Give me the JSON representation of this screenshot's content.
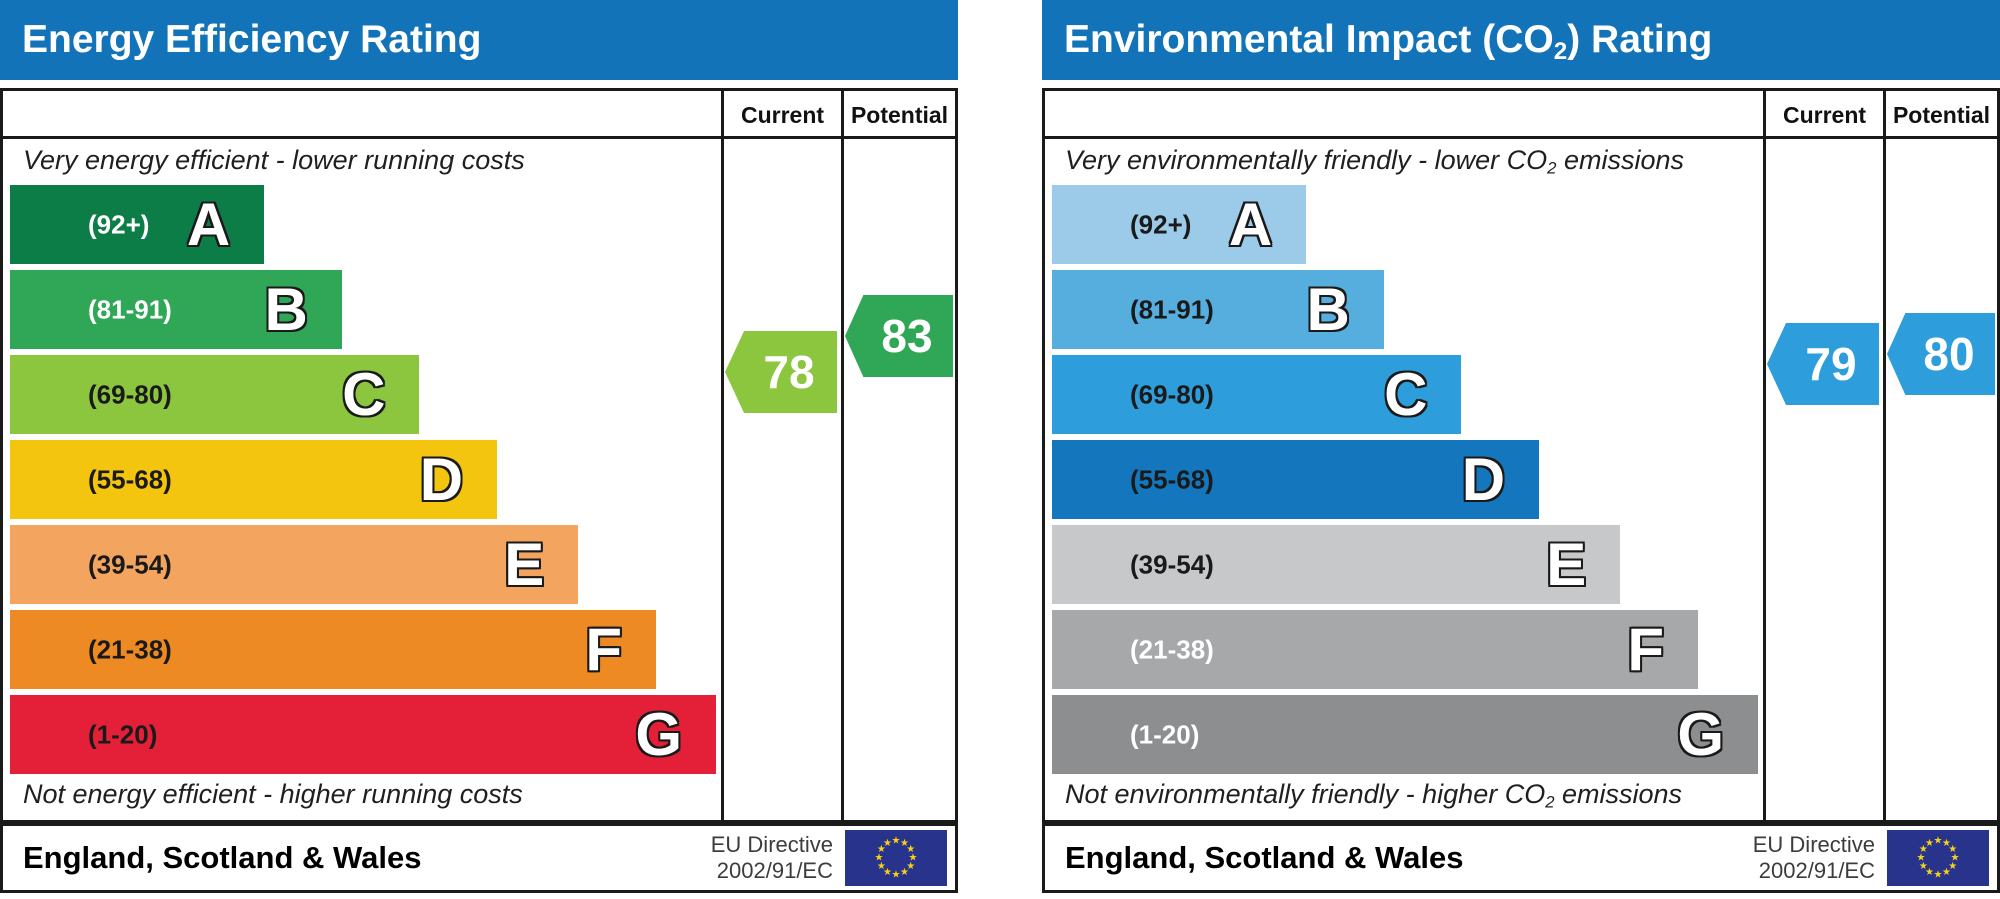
{
  "charts": [
    {
      "title": {
        "prefix": "Energy Efficiency Rating",
        "sub": "",
        "suffix": ""
      },
      "columns": {
        "current": "Current",
        "potential": "Potential"
      },
      "hint_top": {
        "prefix": "Very energy efficient - lower running costs",
        "sub": "",
        "suffix": ""
      },
      "hint_bottom": {
        "prefix": "Not energy efficient - higher running costs",
        "sub": "",
        "suffix": ""
      },
      "bands": [
        {
          "letter": "A",
          "range": "(92+)",
          "color": "#0d7d48",
          "label_color": "#ffffff",
          "width_pct": 36
        },
        {
          "letter": "B",
          "range": "(81-91)",
          "color": "#2fa757",
          "label_color": "#ffffff",
          "width_pct": 47
        },
        {
          "letter": "C",
          "range": "(69-80)",
          "color": "#8cc63f",
          "label_color": "#1a1a1a",
          "width_pct": 58
        },
        {
          "letter": "D",
          "range": "(55-68)",
          "color": "#f4c50f",
          "label_color": "#1a1a1a",
          "width_pct": 69
        },
        {
          "letter": "E",
          "range": "(39-54)",
          "color": "#f3a55f",
          "label_color": "#1a1a1a",
          "width_pct": 80.5
        },
        {
          "letter": "F",
          "range": "(21-38)",
          "color": "#ee8a23",
          "label_color": "#1a1a1a",
          "width_pct": 91.5
        },
        {
          "letter": "G",
          "range": "(1-20)",
          "color": "#e32038",
          "label_color": "#1a1a1a",
          "width_pct": 100
        }
      ],
      "current": {
        "value": "78",
        "color": "#8cc63f"
      },
      "potential": {
        "value": "83",
        "color": "#2fa757"
      },
      "footer": {
        "region": "England, Scotland & Wales",
        "directive_line1": "EU Directive",
        "directive_line2": "2002/91/EC"
      }
    },
    {
      "title": {
        "prefix": "Environmental Impact (CO",
        "sub": "2",
        "suffix": ") Rating"
      },
      "columns": {
        "current": "Current",
        "potential": "Potential"
      },
      "hint_top": {
        "prefix": "Very environmentally friendly - lower CO",
        "sub": "2",
        "suffix": " emissions"
      },
      "hint_bottom": {
        "prefix": "Not environmentally friendly - higher CO",
        "sub": "2",
        "suffix": " emissions"
      },
      "bands": [
        {
          "letter": "A",
          "range": "(92+)",
          "color": "#9ccbe9",
          "label_color": "#1a1a1a",
          "width_pct": 36
        },
        {
          "letter": "B",
          "range": "(81-91)",
          "color": "#55aede",
          "label_color": "#1a1a1a",
          "width_pct": 47
        },
        {
          "letter": "C",
          "range": "(69-80)",
          "color": "#2d9ddb",
          "label_color": "#1a1a1a",
          "width_pct": 58
        },
        {
          "letter": "D",
          "range": "(55-68)",
          "color": "#1476bd",
          "label_color": "#1a1a1a",
          "width_pct": 69
        },
        {
          "letter": "E",
          "range": "(39-54)",
          "color": "#c7c8ca",
          "label_color": "#1a1a1a",
          "width_pct": 80.5
        },
        {
          "letter": "F",
          "range": "(21-38)",
          "color": "#a6a8aa",
          "label_color": "#ffffff",
          "width_pct": 91.5
        },
        {
          "letter": "G",
          "range": "(1-20)",
          "color": "#8c8e90",
          "label_color": "#ffffff",
          "width_pct": 100
        }
      ],
      "current": {
        "value": "79",
        "color": "#2d9ddb"
      },
      "potential": {
        "value": "80",
        "color": "#2d9ddb"
      },
      "footer": {
        "region": "England, Scotland & Wales",
        "directive_line1": "EU Directive",
        "directive_line2": "2002/91/EC"
      }
    }
  ],
  "colors": {
    "header_blue": "#1373b8",
    "border": "#1a1a1a",
    "eu_flag_blue": "#28348c",
    "eu_star_yellow": "#f7d117"
  },
  "chart_data": [
    {
      "type": "bar",
      "title": "Energy Efficiency Rating",
      "subtitle_top": "Very energy efficient - lower running costs",
      "subtitle_bottom": "Not energy efficient - higher running costs",
      "categories": [
        "A",
        "B",
        "C",
        "D",
        "E",
        "F",
        "G"
      ],
      "band_ranges": [
        "92+",
        "81-91",
        "69-80",
        "55-68",
        "39-54",
        "21-38",
        "1-20"
      ],
      "band_colors": [
        "#0d7d48",
        "#2fa757",
        "#8cc63f",
        "#f4c50f",
        "#f3a55f",
        "#ee8a23",
        "#e32038"
      ],
      "series": [
        {
          "name": "Current",
          "values": [
            78
          ]
        },
        {
          "name": "Potential",
          "values": [
            83
          ]
        }
      ],
      "scale": [
        1,
        100
      ],
      "region": "England, Scotland & Wales",
      "directive": "EU Directive 2002/91/EC",
      "legend_position": "top-right-columns",
      "grid": false
    },
    {
      "type": "bar",
      "title": "Environmental Impact (CO2) Rating",
      "subtitle_top": "Very environmentally friendly - lower CO2 emissions",
      "subtitle_bottom": "Not environmentally friendly - higher CO2 emissions",
      "categories": [
        "A",
        "B",
        "C",
        "D",
        "E",
        "F",
        "G"
      ],
      "band_ranges": [
        "92+",
        "81-91",
        "69-80",
        "55-68",
        "39-54",
        "21-38",
        "1-20"
      ],
      "band_colors": [
        "#9ccbe9",
        "#55aede",
        "#2d9ddb",
        "#1476bd",
        "#c7c8ca",
        "#a6a8aa",
        "#8c8e90"
      ],
      "series": [
        {
          "name": "Current",
          "values": [
            79
          ]
        },
        {
          "name": "Potential",
          "values": [
            80
          ]
        }
      ],
      "scale": [
        1,
        100
      ],
      "region": "England, Scotland & Wales",
      "directive": "EU Directive 2002/91/EC",
      "legend_position": "top-right-columns",
      "grid": false
    }
  ]
}
